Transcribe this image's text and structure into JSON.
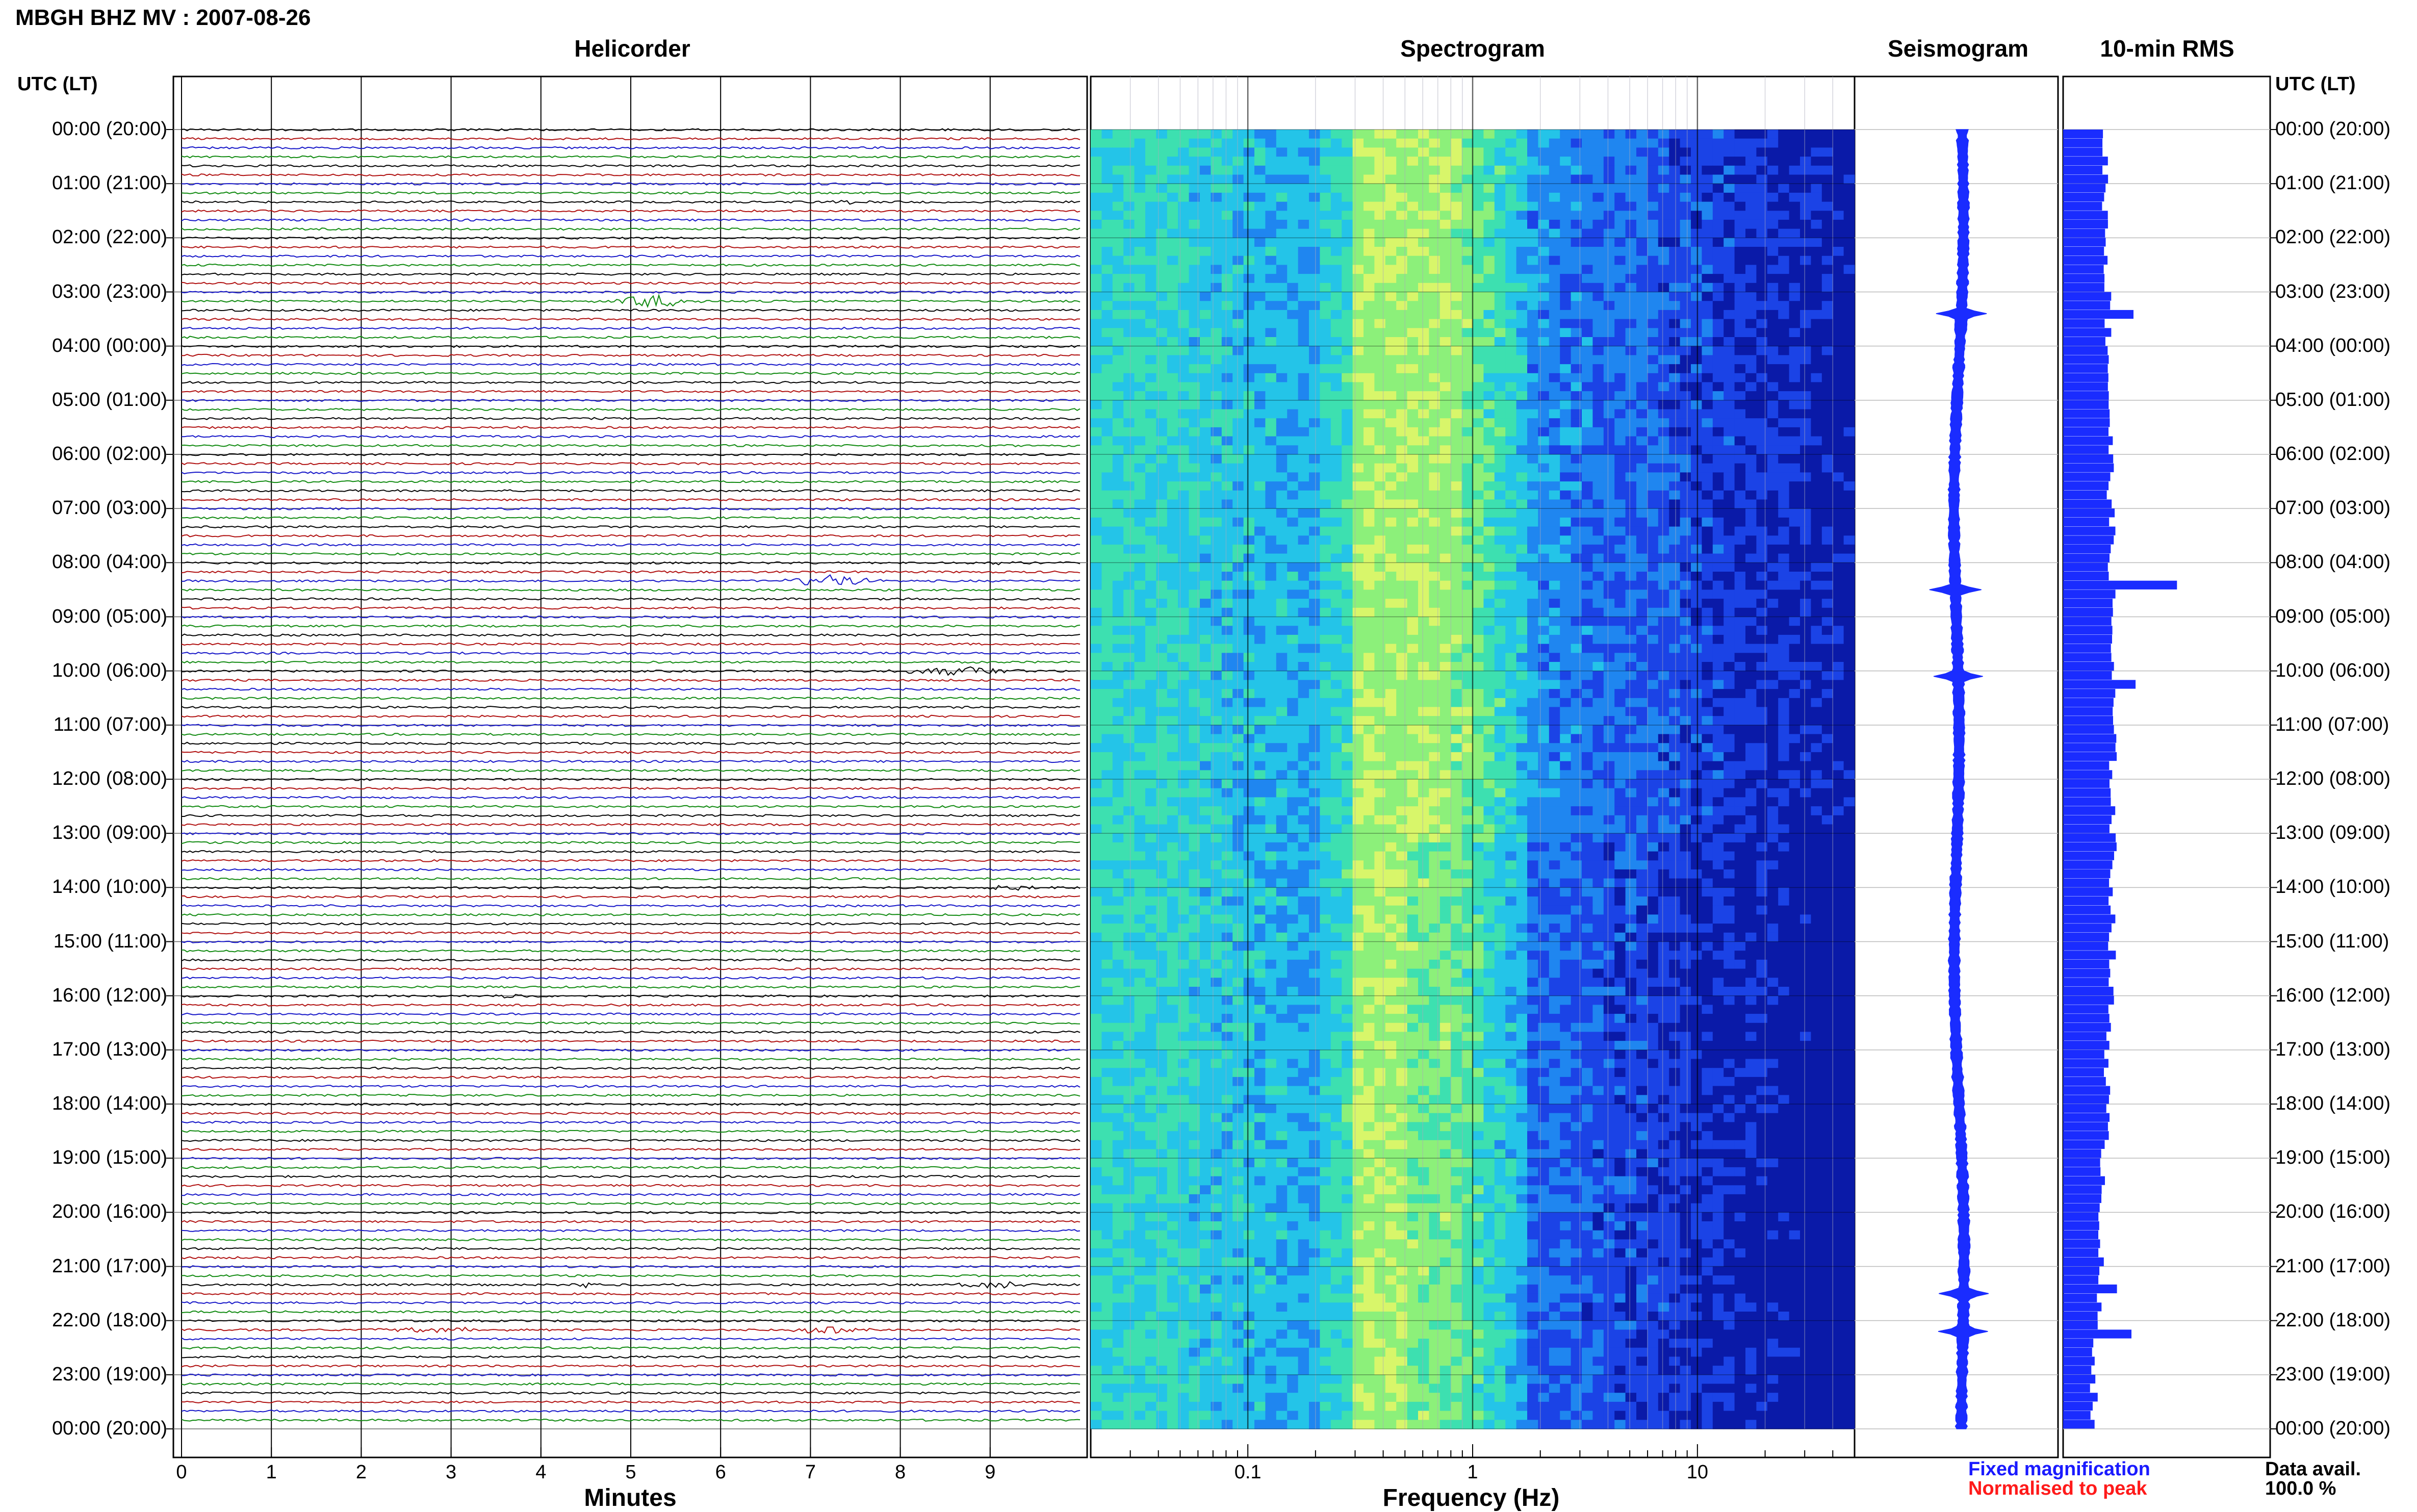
{
  "header": {
    "title": "MBGH BHZ MV : 2007-08-26"
  },
  "panels": {
    "helicorder": "Helicorder",
    "spectrogram": "Spectrogram",
    "seismogram": "Seismogram",
    "rms": "10-min RMS"
  },
  "time_axis": {
    "label_left": "UTC (LT)",
    "label_right": "UTC (LT)",
    "ticks": [
      "00:00 (20:00)",
      "01:00 (21:00)",
      "02:00 (22:00)",
      "03:00 (23:00)",
      "04:00 (00:00)",
      "05:00 (01:00)",
      "06:00 (02:00)",
      "07:00 (03:00)",
      "08:00 (04:00)",
      "09:00 (05:00)",
      "10:00 (06:00)",
      "11:00 (07:00)",
      "12:00 (08:00)",
      "13:00 (09:00)",
      "14:00 (10:00)",
      "15:00 (11:00)",
      "16:00 (12:00)",
      "17:00 (13:00)",
      "18:00 (14:00)",
      "19:00 (15:00)",
      "20:00 (16:00)",
      "21:00 (17:00)",
      "22:00 (18:00)",
      "23:00 (19:00)",
      "00:00 (20:00)"
    ]
  },
  "legend": {
    "fixed": "Fixed magnification",
    "normalised": "Normalised to peak",
    "fixed_color": "#1a1aff",
    "normalised_color": "#ff1a1a"
  },
  "availability": {
    "label": "Data avail.",
    "value": "100.0 %"
  },
  "colors": {
    "trace_cycle": [
      "#000000",
      "#b01010",
      "#1515c8",
      "#108a10"
    ],
    "seismogram": "#1a2cff",
    "rms": "#1a2cff"
  },
  "chart_data": [
    {
      "type": "line",
      "name": "Helicorder",
      "xlabel": "Minutes",
      "xticks": [
        0,
        1,
        2,
        3,
        4,
        5,
        6,
        7,
        8,
        9
      ],
      "xlim": [
        0,
        10
      ],
      "ylim": [
        0,
        24
      ],
      "rows_per_hour": 6,
      "events": [
        {
          "hour": 3.2,
          "minute": 5.2,
          "width": 0.55,
          "amp": 3.2
        },
        {
          "hour": 1.3,
          "minute": 7.4,
          "width": 0.3,
          "amp": 0.8
        },
        {
          "hour": 8.3,
          "minute": 7.2,
          "width": 0.6,
          "amp": 2.8
        },
        {
          "hour": 8.0,
          "minute": 9.1,
          "width": 0.3,
          "amp": 0.8
        },
        {
          "hour": 8.6,
          "minute": 2.1,
          "width": 0.15,
          "amp": 0.7
        },
        {
          "hour": 10.0,
          "minute": 8.7,
          "width": 0.9,
          "amp": 2.0
        },
        {
          "hour": 14.0,
          "minute": 9.2,
          "width": 0.5,
          "amp": 1.0
        },
        {
          "hour": 16.0,
          "minute": 3.7,
          "width": 0.35,
          "amp": 1.2
        },
        {
          "hour": 21.3,
          "minute": 4.5,
          "width": 0.15,
          "amp": 1.1
        },
        {
          "hour": 21.3,
          "minute": 9.0,
          "width": 0.45,
          "amp": 1.8
        },
        {
          "hour": 22.2,
          "minute": 7.2,
          "width": 0.5,
          "amp": 1.8
        },
        {
          "hour": 22.2,
          "minute": 3.0,
          "width": 1.2,
          "amp": 0.9
        }
      ]
    },
    {
      "type": "heatmap",
      "name": "Spectrogram",
      "xlabel": "Frequency (Hz)",
      "xscale": "log",
      "xlim": [
        0.02,
        50
      ],
      "xticks": [
        0.1,
        1,
        10
      ],
      "ylim": [
        0,
        24
      ],
      "peak_band_hz": [
        0.3,
        0.8
      ],
      "colormap": [
        "#0a1aa8",
        "#1b43e6",
        "#1f86f0",
        "#24c4e8",
        "#3de0b0",
        "#8cf07a",
        "#d8f66a"
      ]
    },
    {
      "type": "line",
      "name": "Seismogram",
      "ylim": [
        0,
        24
      ],
      "spikes_hour": [
        3.4,
        8.5,
        10.1,
        21.5,
        22.2
      ]
    },
    {
      "type": "bar",
      "name": "10-min RMS",
      "ylim": [
        0,
        24
      ],
      "baseline_fraction": 0.2,
      "spikes": [
        {
          "hour": 3.4,
          "value": 0.34
        },
        {
          "hour": 8.4,
          "value": 0.55
        },
        {
          "hour": 10.1,
          "value": 0.35
        },
        {
          "hour": 21.4,
          "value": 0.26
        },
        {
          "hour": 22.2,
          "value": 0.33
        }
      ]
    }
  ]
}
